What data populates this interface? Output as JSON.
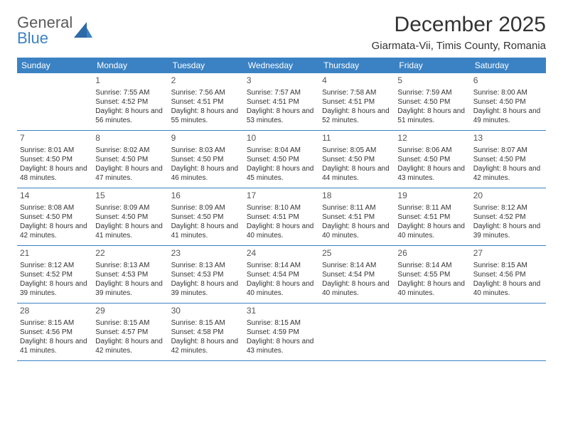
{
  "logo": {
    "word1": "General",
    "word2": "Blue"
  },
  "title": "December 2025",
  "location": "Giarmata-Vii, Timis County, Romania",
  "colors": {
    "header_bg": "#3b82c4",
    "header_text": "#ffffff",
    "border": "#3b82c4",
    "text": "#333333",
    "logo_gray": "#5a5a5a",
    "logo_blue": "#3b82c4",
    "background": "#ffffff"
  },
  "weekdays": [
    "Sunday",
    "Monday",
    "Tuesday",
    "Wednesday",
    "Thursday",
    "Friday",
    "Saturday"
  ],
  "weeks": [
    [
      null,
      {
        "n": "1",
        "sr": "7:55 AM",
        "ss": "4:52 PM",
        "dl": "8 hours and 56 minutes."
      },
      {
        "n": "2",
        "sr": "7:56 AM",
        "ss": "4:51 PM",
        "dl": "8 hours and 55 minutes."
      },
      {
        "n": "3",
        "sr": "7:57 AM",
        "ss": "4:51 PM",
        "dl": "8 hours and 53 minutes."
      },
      {
        "n": "4",
        "sr": "7:58 AM",
        "ss": "4:51 PM",
        "dl": "8 hours and 52 minutes."
      },
      {
        "n": "5",
        "sr": "7:59 AM",
        "ss": "4:50 PM",
        "dl": "8 hours and 51 minutes."
      },
      {
        "n": "6",
        "sr": "8:00 AM",
        "ss": "4:50 PM",
        "dl": "8 hours and 49 minutes."
      }
    ],
    [
      {
        "n": "7",
        "sr": "8:01 AM",
        "ss": "4:50 PM",
        "dl": "8 hours and 48 minutes."
      },
      {
        "n": "8",
        "sr": "8:02 AM",
        "ss": "4:50 PM",
        "dl": "8 hours and 47 minutes."
      },
      {
        "n": "9",
        "sr": "8:03 AM",
        "ss": "4:50 PM",
        "dl": "8 hours and 46 minutes."
      },
      {
        "n": "10",
        "sr": "8:04 AM",
        "ss": "4:50 PM",
        "dl": "8 hours and 45 minutes."
      },
      {
        "n": "11",
        "sr": "8:05 AM",
        "ss": "4:50 PM",
        "dl": "8 hours and 44 minutes."
      },
      {
        "n": "12",
        "sr": "8:06 AM",
        "ss": "4:50 PM",
        "dl": "8 hours and 43 minutes."
      },
      {
        "n": "13",
        "sr": "8:07 AM",
        "ss": "4:50 PM",
        "dl": "8 hours and 42 minutes."
      }
    ],
    [
      {
        "n": "14",
        "sr": "8:08 AM",
        "ss": "4:50 PM",
        "dl": "8 hours and 42 minutes."
      },
      {
        "n": "15",
        "sr": "8:09 AM",
        "ss": "4:50 PM",
        "dl": "8 hours and 41 minutes."
      },
      {
        "n": "16",
        "sr": "8:09 AM",
        "ss": "4:50 PM",
        "dl": "8 hours and 41 minutes."
      },
      {
        "n": "17",
        "sr": "8:10 AM",
        "ss": "4:51 PM",
        "dl": "8 hours and 40 minutes."
      },
      {
        "n": "18",
        "sr": "8:11 AM",
        "ss": "4:51 PM",
        "dl": "8 hours and 40 minutes."
      },
      {
        "n": "19",
        "sr": "8:11 AM",
        "ss": "4:51 PM",
        "dl": "8 hours and 40 minutes."
      },
      {
        "n": "20",
        "sr": "8:12 AM",
        "ss": "4:52 PM",
        "dl": "8 hours and 39 minutes."
      }
    ],
    [
      {
        "n": "21",
        "sr": "8:12 AM",
        "ss": "4:52 PM",
        "dl": "8 hours and 39 minutes."
      },
      {
        "n": "22",
        "sr": "8:13 AM",
        "ss": "4:53 PM",
        "dl": "8 hours and 39 minutes."
      },
      {
        "n": "23",
        "sr": "8:13 AM",
        "ss": "4:53 PM",
        "dl": "8 hours and 39 minutes."
      },
      {
        "n": "24",
        "sr": "8:14 AM",
        "ss": "4:54 PM",
        "dl": "8 hours and 40 minutes."
      },
      {
        "n": "25",
        "sr": "8:14 AM",
        "ss": "4:54 PM",
        "dl": "8 hours and 40 minutes."
      },
      {
        "n": "26",
        "sr": "8:14 AM",
        "ss": "4:55 PM",
        "dl": "8 hours and 40 minutes."
      },
      {
        "n": "27",
        "sr": "8:15 AM",
        "ss": "4:56 PM",
        "dl": "8 hours and 40 minutes."
      }
    ],
    [
      {
        "n": "28",
        "sr": "8:15 AM",
        "ss": "4:56 PM",
        "dl": "8 hours and 41 minutes."
      },
      {
        "n": "29",
        "sr": "8:15 AM",
        "ss": "4:57 PM",
        "dl": "8 hours and 42 minutes."
      },
      {
        "n": "30",
        "sr": "8:15 AM",
        "ss": "4:58 PM",
        "dl": "8 hours and 42 minutes."
      },
      {
        "n": "31",
        "sr": "8:15 AM",
        "ss": "4:59 PM",
        "dl": "8 hours and 43 minutes."
      },
      null,
      null,
      null
    ]
  ],
  "labels": {
    "sunrise": "Sunrise: ",
    "sunset": "Sunset: ",
    "daylight": "Daylight: "
  }
}
